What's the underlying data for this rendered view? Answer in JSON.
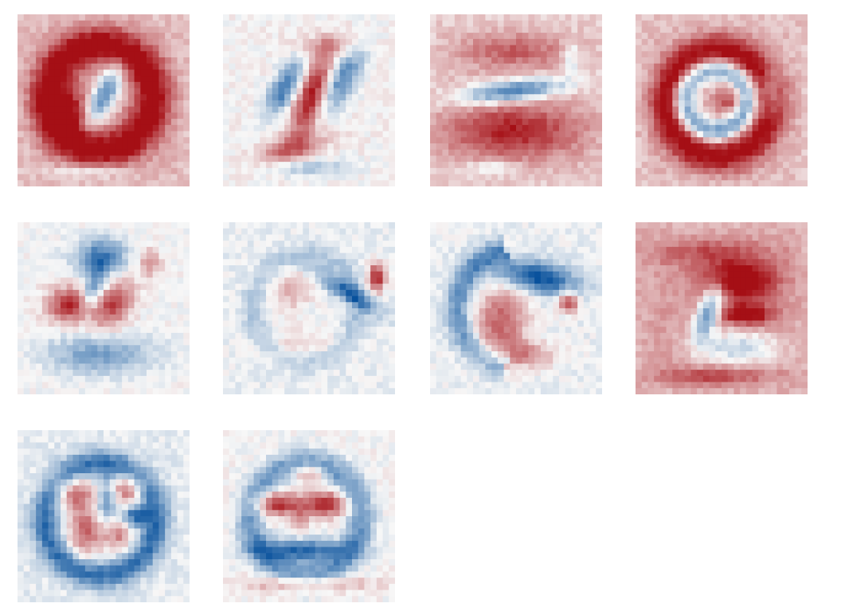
{
  "chart_data": {
    "type": "heatmap",
    "title": "",
    "layout": {
      "rows": 3,
      "cols": 4
    },
    "colormap": {
      "name": "RdBu_r",
      "negative": "#08519c",
      "neutral": "#f7f7f7",
      "positive": "#a50f15"
    },
    "grid": false,
    "axes_visible": false,
    "resolution": [
      28,
      28
    ],
    "value_range": [
      -1,
      1
    ],
    "panels": [
      {
        "index": 0,
        "background": 0.3,
        "features": [
          {
            "shape": "ring",
            "cx": 13.5,
            "cy": 13.5,
            "r": 8.5,
            "w": 2.2,
            "v": 0.85
          },
          {
            "shape": "blob",
            "cx": 14.0,
            "cy": 13.5,
            "sx": 1.4,
            "sy": 3.6,
            "rot": 0.45,
            "v": -1.0
          },
          {
            "shape": "blob",
            "cx": 8.5,
            "cy": 16.0,
            "sx": 2.5,
            "sy": 3.0,
            "rot": 0.0,
            "v": 0.6
          },
          {
            "shape": "blob",
            "cx": 12.0,
            "cy": 25.5,
            "sx": 4.0,
            "sy": 0.8,
            "rot": 0.0,
            "v": -0.4
          }
        ]
      },
      {
        "index": 1,
        "background": 0.02,
        "features": [
          {
            "shape": "blob",
            "cx": 14.5,
            "cy": 13.0,
            "sx": 1.6,
            "sy": 5.0,
            "rot": 0.35,
            "v": 0.95
          },
          {
            "shape": "blob",
            "cx": 19.5,
            "cy": 10.5,
            "sx": 1.6,
            "sy": 4.0,
            "rot": 0.5,
            "v": -0.7
          },
          {
            "shape": "blob",
            "cx": 10.0,
            "cy": 12.0,
            "sx": 1.4,
            "sy": 3.5,
            "rot": 0.5,
            "v": -0.8
          },
          {
            "shape": "blob",
            "cx": 11.0,
            "cy": 22.0,
            "sx": 4.0,
            "sy": 1.5,
            "rot": -0.3,
            "v": 0.6
          },
          {
            "shape": "blob",
            "cx": 17.0,
            "cy": 5.0,
            "sx": 4.0,
            "sy": 1.2,
            "rot": 0.0,
            "v": 0.3
          },
          {
            "shape": "blob",
            "cx": 13.5,
            "cy": 25.0,
            "sx": 5.0,
            "sy": 1.0,
            "rot": 0.0,
            "v": -0.35
          }
        ]
      },
      {
        "index": 2,
        "background": 0.22,
        "features": [
          {
            "shape": "blob",
            "cx": 13.5,
            "cy": 12.5,
            "sx": 6.0,
            "sy": 1.2,
            "rot": -0.12,
            "v": -1.0
          },
          {
            "shape": "blob",
            "cx": 13.5,
            "cy": 19.0,
            "sx": 8.0,
            "sy": 3.2,
            "rot": 0.0,
            "v": 0.7
          },
          {
            "shape": "blob",
            "cx": 13.5,
            "cy": 6.0,
            "sx": 6.0,
            "sy": 2.0,
            "rot": 0.0,
            "v": 0.45
          },
          {
            "shape": "blob",
            "cx": 23.0,
            "cy": 7.0,
            "sx": 1.0,
            "sy": 2.0,
            "rot": 0.0,
            "v": -0.4
          },
          {
            "shape": "blob",
            "cx": 10.0,
            "cy": 25.0,
            "sx": 3.0,
            "sy": 0.8,
            "rot": 0.0,
            "v": -0.35
          }
        ]
      },
      {
        "index": 3,
        "background": 0.28,
        "features": [
          {
            "shape": "ring",
            "cx": 13.5,
            "cy": 14.5,
            "r": 8.5,
            "w": 2.0,
            "v": 0.8
          },
          {
            "shape": "ring",
            "cx": 13.0,
            "cy": 14.0,
            "r": 5.0,
            "w": 1.3,
            "v": -0.9
          },
          {
            "shape": "blob",
            "cx": 15.5,
            "cy": 14.0,
            "sx": 1.6,
            "sy": 1.8,
            "rot": 0.0,
            "v": 0.5
          },
          {
            "shape": "blob",
            "cx": 22.0,
            "cy": 12.5,
            "sx": 1.0,
            "sy": 3.0,
            "rot": 0.0,
            "v": -0.5
          }
        ]
      },
      {
        "index": 4,
        "background": 0.0,
        "features": [
          {
            "shape": "blob",
            "cx": 8.5,
            "cy": 13.5,
            "sx": 2.5,
            "sy": 2.0,
            "rot": 0.0,
            "v": 0.9
          },
          {
            "shape": "blob",
            "cx": 15.5,
            "cy": 13.5,
            "sx": 2.0,
            "sy": 3.0,
            "rot": 0.6,
            "v": 0.75
          },
          {
            "shape": "blob",
            "cx": 13.5,
            "cy": 5.5,
            "sx": 3.0,
            "sy": 2.0,
            "rot": 0.0,
            "v": -0.7
          },
          {
            "shape": "blob",
            "cx": 12.5,
            "cy": 10.5,
            "sx": 1.2,
            "sy": 3.0,
            "rot": 0.3,
            "v": -0.65
          },
          {
            "shape": "blob",
            "cx": 13.5,
            "cy": 21.5,
            "sx": 6.0,
            "sy": 2.2,
            "rot": 0.0,
            "v": -0.55
          },
          {
            "shape": "blob",
            "cx": 21.5,
            "cy": 6.5,
            "sx": 1.2,
            "sy": 1.5,
            "rot": 0.0,
            "v": 0.5
          }
        ]
      },
      {
        "index": 5,
        "background": -0.06,
        "features": [
          {
            "shape": "blob",
            "cx": 25.0,
            "cy": 9.0,
            "sx": 1.0,
            "sy": 1.6,
            "rot": 0.0,
            "v": 1.0
          },
          {
            "shape": "blob",
            "cx": 20.5,
            "cy": 11.5,
            "sx": 4.0,
            "sy": 1.0,
            "rot": 0.55,
            "v": -0.7
          },
          {
            "shape": "ring",
            "cx": 13.5,
            "cy": 14.0,
            "r": 8.5,
            "w": 1.4,
            "v": -0.25
          },
          {
            "shape": "blob",
            "cx": 11.0,
            "cy": 11.0,
            "sx": 2.5,
            "sy": 2.5,
            "rot": 0.0,
            "v": 0.35
          },
          {
            "shape": "blob",
            "cx": 13.0,
            "cy": 20.0,
            "sx": 5.0,
            "sy": 2.0,
            "rot": 0.0,
            "v": 0.25
          }
        ]
      },
      {
        "index": 6,
        "background": -0.05,
        "features": [
          {
            "shape": "blob",
            "cx": 17.5,
            "cy": 9.0,
            "sx": 4.5,
            "sy": 1.8,
            "rot": 0.2,
            "v": -1.0
          },
          {
            "shape": "arc",
            "cx": 14.0,
            "cy": 14.0,
            "r": 9.5,
            "w": 1.5,
            "a0": 100,
            "a1": 260,
            "v": -0.6
          },
          {
            "shape": "blob",
            "cx": 11.5,
            "cy": 16.0,
            "sx": 3.0,
            "sy": 4.0,
            "rot": 0.3,
            "v": 0.7
          },
          {
            "shape": "blob",
            "cx": 22.5,
            "cy": 13.0,
            "sx": 1.2,
            "sy": 1.2,
            "rot": 0.0,
            "v": 0.85
          },
          {
            "shape": "blob",
            "cx": 15.0,
            "cy": 21.5,
            "sx": 4.0,
            "sy": 1.5,
            "rot": 0.0,
            "v": 0.5
          }
        ]
      },
      {
        "index": 7,
        "background": 0.38,
        "features": [
          {
            "shape": "blob",
            "cx": 12.0,
            "cy": 14.5,
            "sx": 1.3,
            "sy": 3.2,
            "rot": 0.35,
            "v": -1.0
          },
          {
            "shape": "blob",
            "cx": 17.0,
            "cy": 9.5,
            "sx": 4.0,
            "sy": 2.2,
            "rot": 0.0,
            "v": 0.9
          },
          {
            "shape": "blob",
            "cx": 18.0,
            "cy": 15.0,
            "sx": 3.0,
            "sy": 1.2,
            "rot": 0.0,
            "v": 0.8
          },
          {
            "shape": "blob",
            "cx": 16.5,
            "cy": 20.5,
            "sx": 5.0,
            "sy": 2.0,
            "rot": 0.0,
            "v": -0.6
          },
          {
            "shape": "blob",
            "cx": 13.0,
            "cy": 25.0,
            "sx": 6.0,
            "sy": 1.0,
            "rot": 0.0,
            "v": 0.45
          },
          {
            "shape": "blob",
            "cx": 12.0,
            "cy": 5.0,
            "sx": 6.0,
            "sy": 1.5,
            "rot": 0.0,
            "v": 0.35
          }
        ]
      },
      {
        "index": 8,
        "background": -0.08,
        "features": [
          {
            "shape": "ring",
            "cx": 13.5,
            "cy": 14.5,
            "r": 9.0,
            "w": 1.6,
            "v": -0.75
          },
          {
            "shape": "blob",
            "cx": 9.0,
            "cy": 10.0,
            "sx": 2.5,
            "sy": 2.0,
            "rot": 0.0,
            "v": 0.7
          },
          {
            "shape": "blob",
            "cx": 18.0,
            "cy": 9.5,
            "sx": 2.0,
            "sy": 1.8,
            "rot": 0.0,
            "v": 0.75
          },
          {
            "shape": "blob",
            "cx": 11.0,
            "cy": 16.5,
            "sx": 2.0,
            "sy": 3.0,
            "rot": 0.0,
            "v": 0.7
          },
          {
            "shape": "blob",
            "cx": 16.5,
            "cy": 17.0,
            "sx": 1.8,
            "sy": 2.0,
            "rot": 0.0,
            "v": 0.55
          },
          {
            "shape": "blob",
            "cx": 14.5,
            "cy": 11.5,
            "sx": 1.2,
            "sy": 2.5,
            "rot": 0.0,
            "v": -0.6
          },
          {
            "shape": "blob",
            "cx": 19.0,
            "cy": 14.0,
            "sx": 1.5,
            "sy": 1.2,
            "rot": 0.0,
            "v": -0.8
          }
        ]
      },
      {
        "index": 9,
        "background": 0.0,
        "features": [
          {
            "shape": "ring",
            "cx": 13.5,
            "cy": 14.5,
            "r": 9.0,
            "w": 1.6,
            "v": -0.6
          },
          {
            "shape": "blob",
            "cx": 8.5,
            "cy": 12.0,
            "sx": 2.5,
            "sy": 1.3,
            "rot": 0.0,
            "v": 0.9
          },
          {
            "shape": "blob",
            "cx": 16.5,
            "cy": 12.0,
            "sx": 2.8,
            "sy": 1.5,
            "rot": 0.0,
            "v": 0.85
          },
          {
            "shape": "blob",
            "cx": 14.0,
            "cy": 7.0,
            "sx": 2.0,
            "sy": 1.0,
            "rot": 0.0,
            "v": 0.6
          },
          {
            "shape": "blob",
            "cx": 13.0,
            "cy": 19.5,
            "sx": 5.0,
            "sy": 1.2,
            "rot": 0.0,
            "v": -0.85
          },
          {
            "shape": "blob",
            "cx": 13.5,
            "cy": 25.0,
            "sx": 7.0,
            "sy": 0.8,
            "rot": 0.0,
            "v": 0.5
          },
          {
            "shape": "blob",
            "cx": 12.5,
            "cy": 14.5,
            "sx": 1.0,
            "sy": 1.5,
            "rot": 0.0,
            "v": 0.4
          }
        ]
      }
    ]
  }
}
